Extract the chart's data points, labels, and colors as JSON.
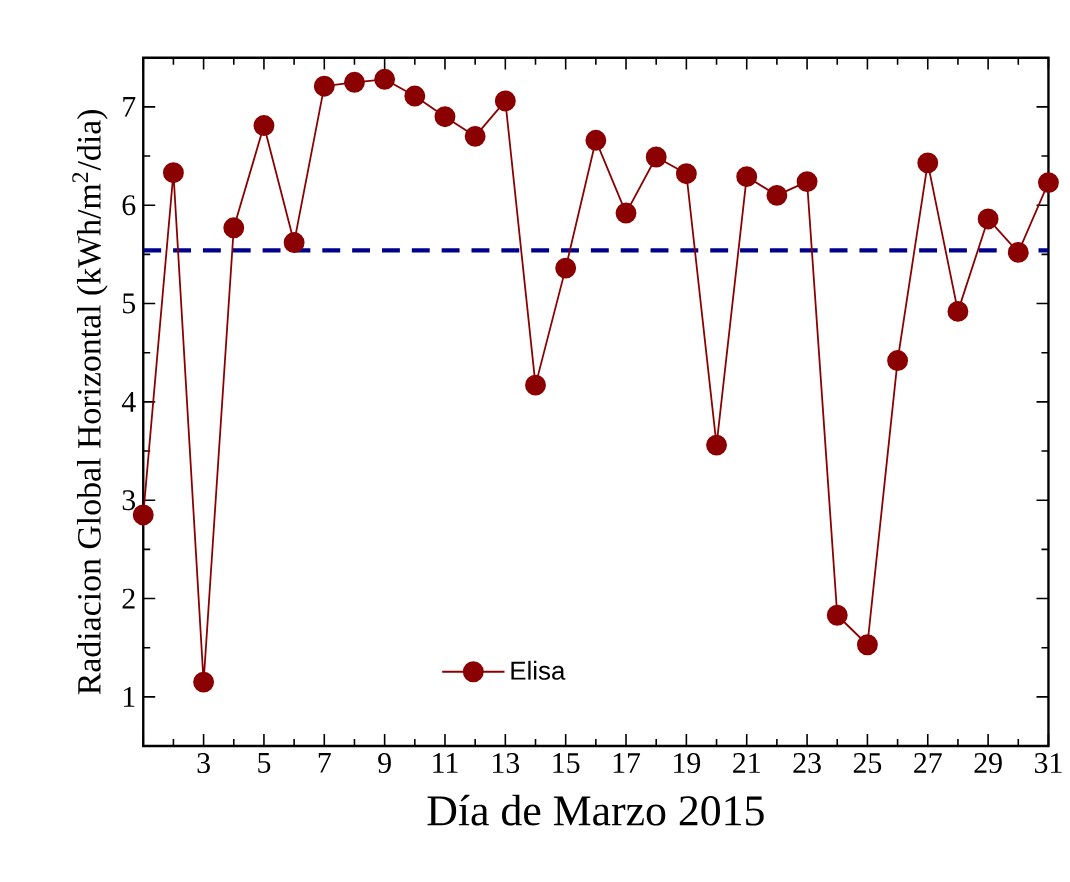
{
  "chart_data": {
    "type": "line",
    "xlabel": "Día de Marzo 2015",
    "ylabel": "Radiacion Global Horizontal   (kWh/m$^{2}$/dia)",
    "x": [
      1,
      2,
      3,
      4,
      5,
      6,
      7,
      8,
      9,
      10,
      11,
      12,
      13,
      14,
      15,
      16,
      17,
      18,
      19,
      20,
      21,
      22,
      23,
      24,
      25,
      26,
      27,
      28,
      29,
      30,
      31
    ],
    "series": [
      {
        "name": "Elisa",
        "color": "#8b0000",
        "values": [
          2.85,
          6.33,
          1.15,
          5.77,
          6.81,
          5.62,
          7.21,
          7.25,
          7.28,
          7.11,
          6.9,
          6.7,
          7.06,
          4.17,
          5.36,
          6.66,
          5.92,
          6.49,
          6.32,
          3.56,
          6.29,
          6.1,
          6.24,
          1.83,
          1.53,
          4.42,
          6.43,
          4.92,
          5.86,
          5.52,
          6.23
        ]
      }
    ],
    "marker": "circle",
    "line_style": "solid",
    "legend": "bottom",
    "grid": false,
    "xlim": [
      1,
      31
    ],
    "ylim": [
      0.5,
      7.5
    ],
    "xticks": [
      {
        "value": 1,
        "label": null
      },
      3,
      5,
      7,
      9,
      11,
      13,
      15,
      17,
      19,
      21,
      23,
      25,
      27,
      29,
      31
    ],
    "yticks": [
      1,
      2,
      3,
      4,
      5,
      6,
      7
    ],
    "ref_lines": [
      {
        "axis": "y",
        "value": 5.54,
        "color": "#00008b",
        "line_style": "dashed"
      }
    ]
  }
}
